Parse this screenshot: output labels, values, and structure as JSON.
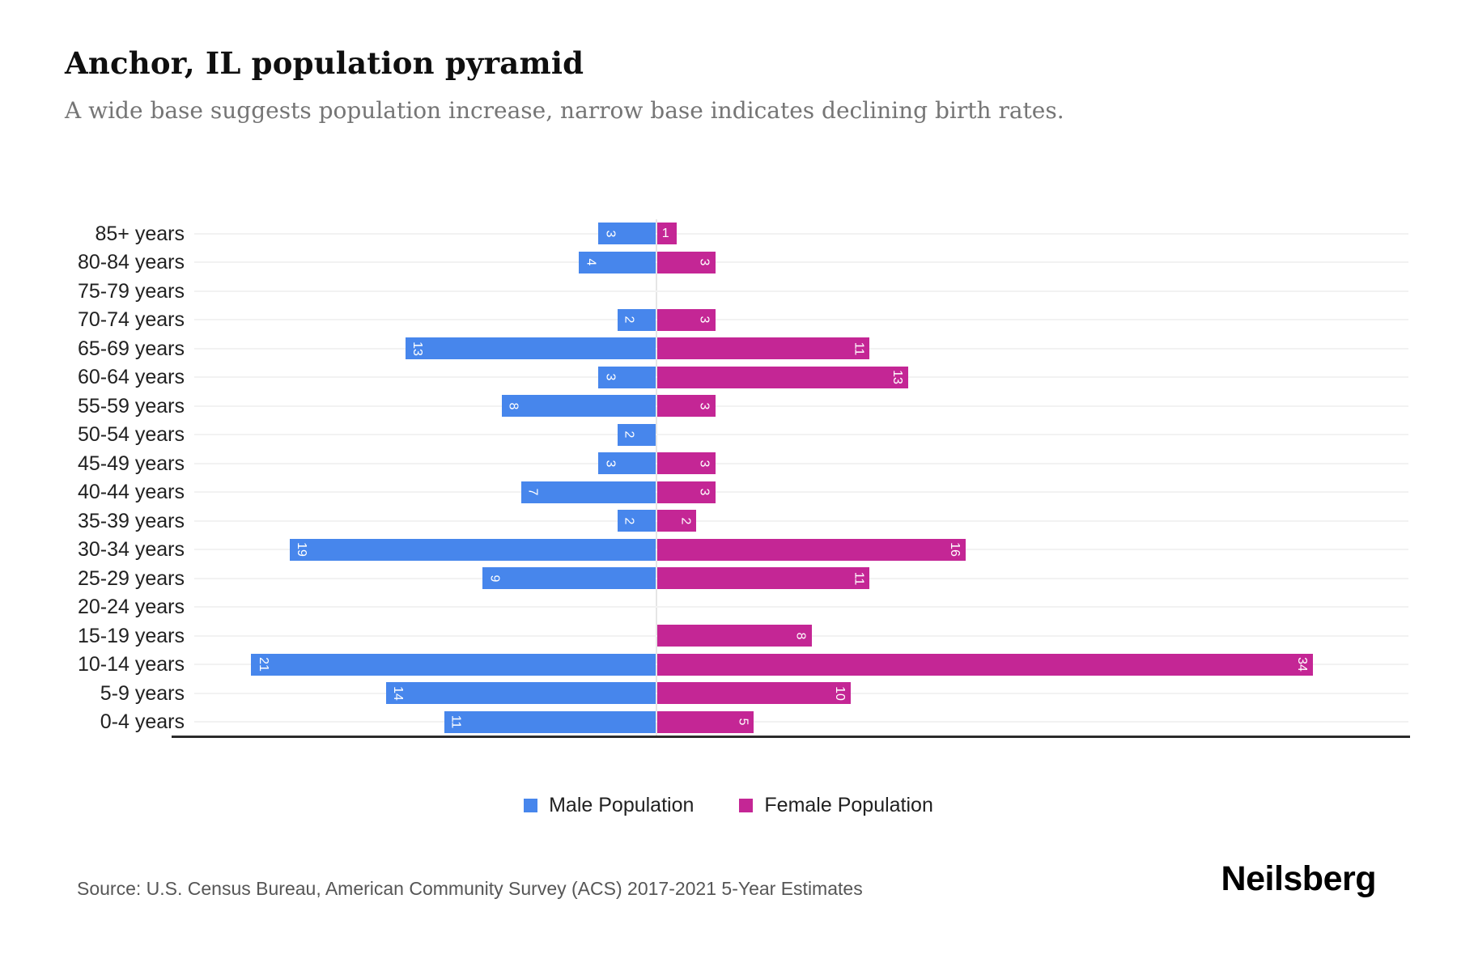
{
  "header": {
    "title": "Anchor, IL population pyramid",
    "subtitle": "A wide base suggests population increase, narrow base indicates declining birth rates."
  },
  "chart_data": {
    "type": "bar",
    "variant": "population-pyramid",
    "orientation": "horizontal",
    "categories": [
      "85+ years",
      "80-84 years",
      "75-79 years",
      "70-74 years",
      "65-69 years",
      "60-64 years",
      "55-59 years",
      "50-54 years",
      "45-49 years",
      "40-44 years",
      "35-39 years",
      "30-34 years",
      "25-29 years",
      "20-24 years",
      "15-19 years",
      "10-14 years",
      "5-9 years",
      "0-4 years"
    ],
    "series": [
      {
        "name": "Male Population",
        "side": "left",
        "color": "#4786EC",
        "values": [
          3,
          4,
          0,
          2,
          13,
          3,
          8,
          2,
          3,
          7,
          2,
          19,
          9,
          0,
          0,
          21,
          14,
          11
        ]
      },
      {
        "name": "Female Population",
        "side": "right",
        "color": "#C42695",
        "values": [
          1,
          3,
          0,
          3,
          11,
          13,
          3,
          0,
          3,
          3,
          2,
          16,
          11,
          0,
          8,
          34,
          10,
          5
        ]
      }
    ],
    "axis": {
      "left_max": 24,
      "right_max": 39,
      "grid": true,
      "zero_line": true,
      "x_tick_labels_visible": false
    },
    "bar_value_labels": "inside-outer-end, white, rotated 90deg",
    "legend_position": "bottom"
  },
  "legend": {
    "male_label": "Male Population",
    "female_label": "Female Population"
  },
  "footer": {
    "source": "Source: U.S. Census Bureau, American Community Survey (ACS) 2017-2021 5-Year Estimates",
    "logo": "Neilsberg"
  },
  "colors": {
    "male": "#4786EC",
    "female": "#C42695",
    "subtitle_gray": "#757575",
    "gridline": "#f2f2f2",
    "axis_line": "#2b2b2b"
  }
}
